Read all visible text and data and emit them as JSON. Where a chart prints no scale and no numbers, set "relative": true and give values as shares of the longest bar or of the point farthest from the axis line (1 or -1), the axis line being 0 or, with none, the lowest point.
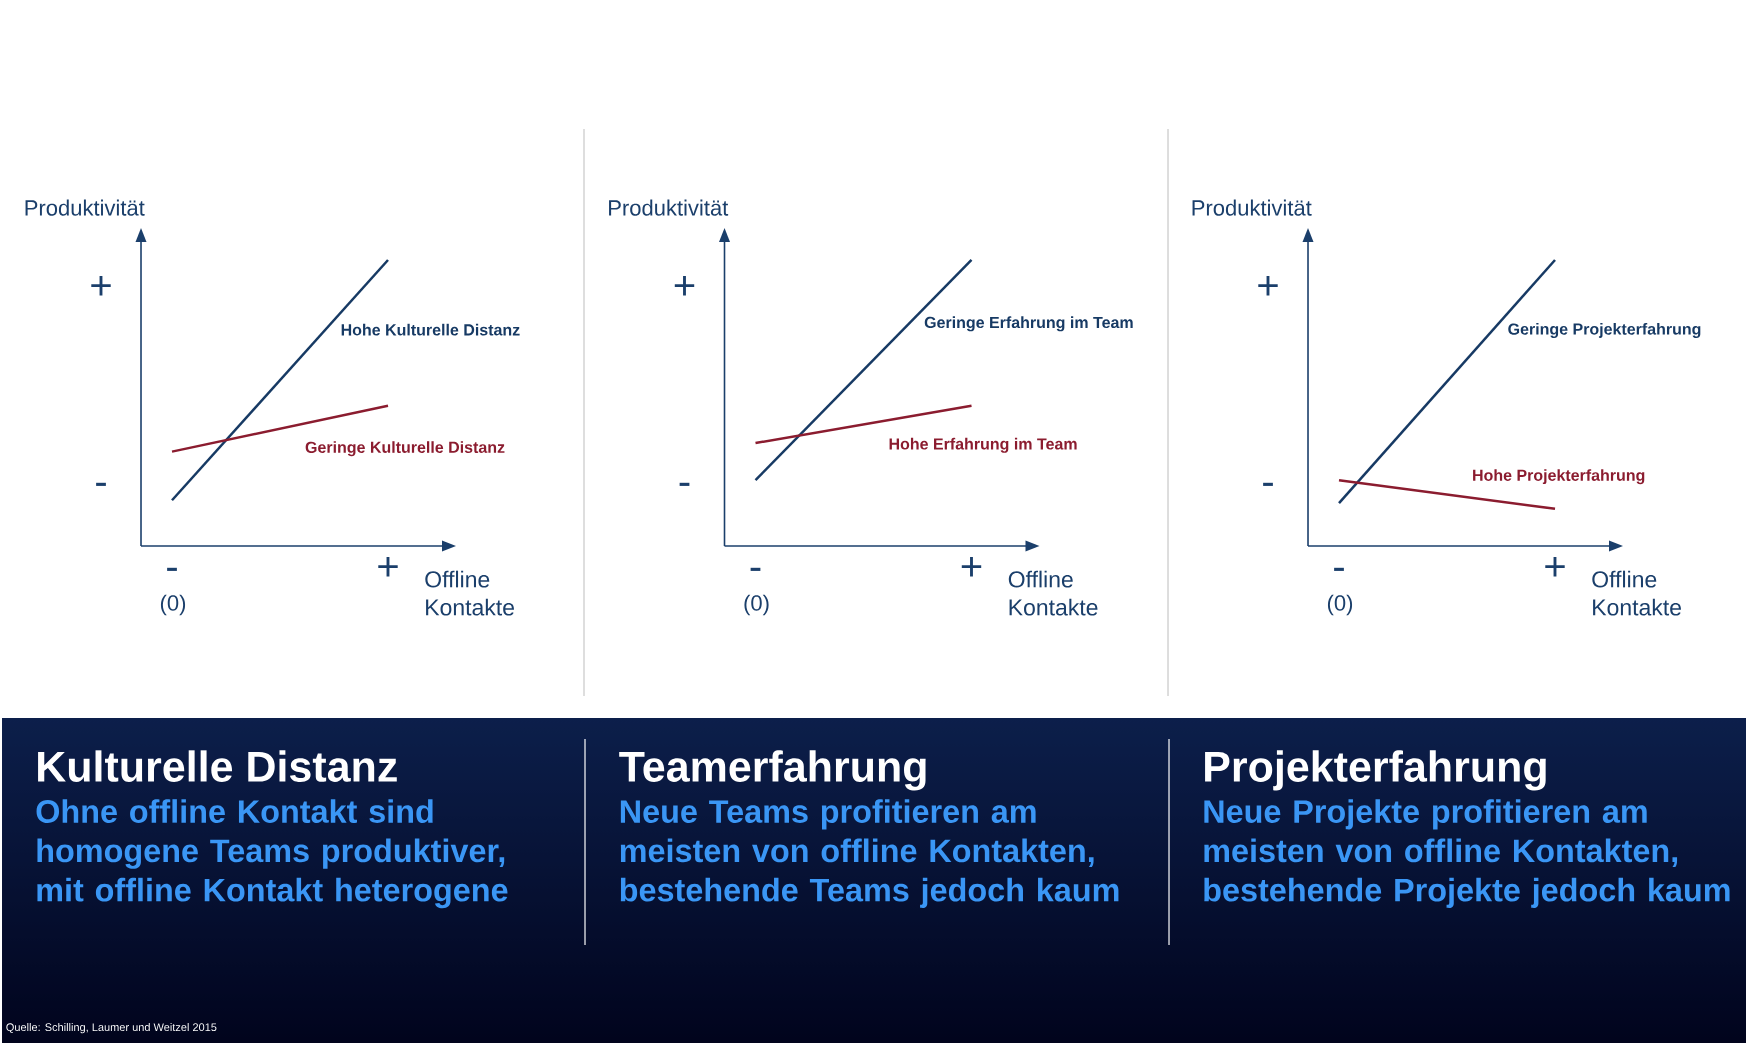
{
  "chart_data": [
    {
      "type": "line",
      "relative": true,
      "title": "Kulturelle Distanz",
      "subtitle": "Ohne offline Kontakt sind homogene Teams produktiver, mit offline Kontakt heterogene",
      "xlabel": "Offline Kontakte",
      "ylabel": "Produktivität",
      "categories": [
        "-",
        "+"
      ],
      "line_style": "solid",
      "series": [
        {
          "name": "Hohe Kulturelle Distanz",
          "color": "#173a64",
          "values": [
            0.16,
            1
          ]
        },
        {
          "name": "Geringe Kulturelle Distanz",
          "color": "#8b1c2f",
          "values": [
            0.33,
            0.49
          ]
        }
      ],
      "annotations": [
        "+",
        "-",
        "(0)",
        "Quelle: Schilling, Laumer und Weitzel 2015"
      ]
    },
    {
      "type": "line",
      "relative": true,
      "title": "Teamerfahrung",
      "subtitle": "Neue Teams profitieren am meisten von offline Kontakten, bestehende Teams jedoch kaum",
      "xlabel": "Offline Kontakte",
      "ylabel": "Produktivität",
      "categories": [
        "-",
        "+"
      ],
      "line_style": "solid",
      "series": [
        {
          "name": "Geringe Erfahrung im Team",
          "color": "#173a64",
          "values": [
            0.23,
            1
          ]
        },
        {
          "name": "Hohe Erfahrung im Team",
          "color": "#8b1c2f",
          "values": [
            0.36,
            0.49
          ]
        }
      ],
      "annotations": [
        "+",
        "-",
        "(0)"
      ]
    },
    {
      "type": "line",
      "relative": true,
      "title": "Projekterfahrung",
      "subtitle": "Neue Projekte profitieren am meisten von offline Kontakten, bestehende Projekte jedoch kaum",
      "xlabel": "Offline Kontakte",
      "ylabel": "Produktivität",
      "categories": [
        "-",
        "+"
      ],
      "line_style": "solid",
      "series": [
        {
          "name": "Geringe Projekterfahrung",
          "color": "#173a64",
          "values": [
            0.15,
            1
          ]
        },
        {
          "name": "Hohe Projekterfahrung",
          "color": "#8b1c2f",
          "values": [
            0.23,
            0.13
          ]
        }
      ],
      "annotations": [
        "+",
        "-",
        "(0)"
      ]
    }
  ]
}
